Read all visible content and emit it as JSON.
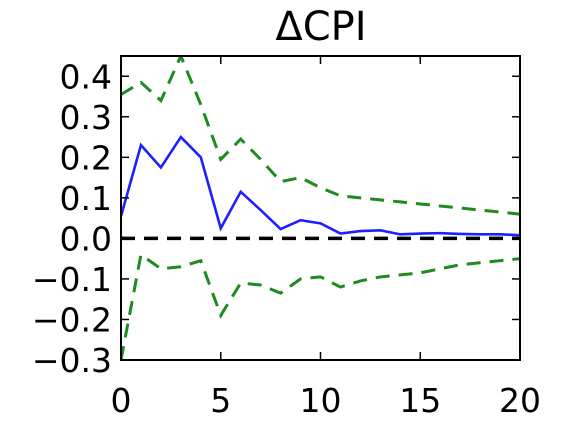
{
  "chart_data": {
    "type": "line",
    "title": "ΔCPI",
    "xlabel": "",
    "ylabel": "",
    "xlim": [
      0,
      20
    ],
    "ylim": [
      -0.3,
      0.45
    ],
    "x_ticks": [
      0,
      5,
      10,
      15,
      20
    ],
    "y_ticks": [
      -0.3,
      -0.2,
      -0.1,
      0.0,
      0.1,
      0.2,
      0.3,
      0.4
    ],
    "x_tick_labels": [
      "0",
      "5",
      "10",
      "15",
      "20"
    ],
    "y_tick_labels": [
      "−0.3",
      "−0.2",
      "−0.1",
      "0.0",
      "0.1",
      "0.2",
      "0.3",
      "0.4"
    ],
    "grid": false,
    "legend": "none",
    "x": [
      0,
      1,
      2,
      3,
      4,
      5,
      6,
      7,
      8,
      9,
      10,
      11,
      12,
      13,
      14,
      15,
      16,
      17,
      18,
      19,
      20
    ],
    "series": [
      {
        "role": "impulse-response",
        "color": "#1f1fff",
        "style": "solid",
        "values": [
          0.055,
          0.23,
          0.175,
          0.25,
          0.2,
          0.025,
          0.115,
          0.07,
          0.023,
          0.045,
          0.037,
          0.012,
          0.018,
          0.02,
          0.01,
          0.012,
          0.013,
          0.011,
          0.01,
          0.01,
          0.008
        ]
      },
      {
        "role": "upper-band",
        "color": "#1f8a1f",
        "style": "dashed",
        "values": [
          0.355,
          0.385,
          0.34,
          0.45,
          0.33,
          0.195,
          0.245,
          0.195,
          0.14,
          0.15,
          0.125,
          0.105,
          0.1,
          0.095,
          0.09,
          0.085,
          0.08,
          0.075,
          0.07,
          0.065,
          0.06
        ]
      },
      {
        "role": "lower-band",
        "color": "#1f8a1f",
        "style": "dashed",
        "values": [
          -0.3,
          -0.04,
          -0.075,
          -0.07,
          -0.055,
          -0.19,
          -0.11,
          -0.115,
          -0.135,
          -0.1,
          -0.095,
          -0.12,
          -0.105,
          -0.095,
          -0.09,
          -0.085,
          -0.075,
          -0.065,
          -0.06,
          -0.055,
          -0.05
        ]
      }
    ],
    "reference_line": {
      "y": 0.0,
      "color": "#000000",
      "style": "dashed"
    }
  }
}
